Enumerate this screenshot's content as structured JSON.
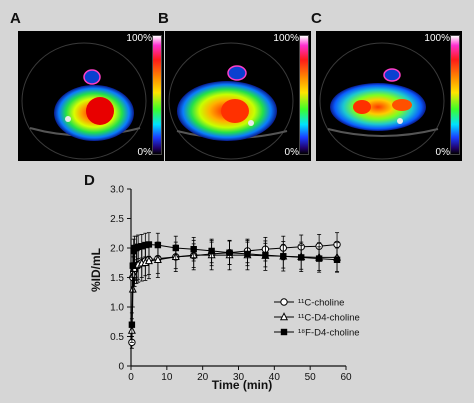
{
  "panels": [
    {
      "letter": "A",
      "cbar_top": "100%",
      "cbar_bottom": "0%"
    },
    {
      "letter": "B",
      "cbar_top": "100%",
      "cbar_bottom": "0%"
    },
    {
      "letter": "C",
      "cbar_top": "100%",
      "cbar_bottom": "0%"
    }
  ],
  "chart_panel_letter": "D",
  "colors": {
    "background": "#d6d6d6",
    "series": "#000000"
  },
  "chart_data": {
    "type": "line",
    "title": "",
    "xlabel": "Time (min)",
    "ylabel": "%ID/mL",
    "xlim": [
      0,
      60
    ],
    "ylim": [
      0,
      3.0
    ],
    "xticks": [
      0,
      10,
      20,
      30,
      40,
      50,
      60
    ],
    "yticks": [
      0,
      0.5,
      1.0,
      1.5,
      2.0,
      2.5,
      3.0
    ],
    "ytick_labels": [
      "0",
      "0.5",
      "1.0",
      "1.5",
      "2.0",
      "2.5",
      "3.0"
    ],
    "legend_position": "bottom-right",
    "series": [
      {
        "name": "¹¹C-choline",
        "marker": "open-circle",
        "x": [
          0.25,
          0.5,
          0.75,
          1,
          1.5,
          2,
          3,
          4,
          5,
          7.5,
          12.5,
          17.5,
          22.5,
          27.5,
          32.5,
          37.5,
          42.5,
          47.5,
          52.5,
          57.5
        ],
        "y": [
          0.4,
          1.5,
          1.6,
          1.65,
          1.7,
          1.72,
          1.75,
          1.78,
          1.8,
          1.82,
          1.85,
          1.87,
          1.9,
          1.92,
          1.95,
          1.98,
          2.0,
          2.02,
          2.03,
          2.06
        ],
        "err": [
          0.1,
          0.25,
          0.25,
          0.25,
          0.25,
          0.25,
          0.25,
          0.25,
          0.25,
          0.25,
          0.2,
          0.2,
          0.2,
          0.2,
          0.2,
          0.2,
          0.2,
          0.2,
          0.2,
          0.2
        ]
      },
      {
        "name": "¹¹C-D4-choline",
        "marker": "open-triangle",
        "x": [
          0.25,
          0.5,
          0.75,
          1,
          1.5,
          2,
          3,
          4,
          5,
          7.5,
          12.5,
          17.5,
          22.5,
          27.5,
          32.5,
          37.5,
          42.5,
          47.5,
          52.5,
          57.5
        ],
        "y": [
          0.6,
          1.3,
          1.55,
          1.65,
          1.7,
          1.72,
          1.74,
          1.75,
          1.78,
          1.8,
          1.85,
          1.88,
          1.88,
          1.88,
          1.88,
          1.87,
          1.86,
          1.85,
          1.84,
          1.84
        ],
        "err": [
          0.2,
          0.3,
          0.3,
          0.3,
          0.3,
          0.3,
          0.3,
          0.3,
          0.3,
          0.3,
          0.25,
          0.25,
          0.25,
          0.25,
          0.25,
          0.25,
          0.25,
          0.25,
          0.25,
          0.25
        ]
      },
      {
        "name": "¹⁸F-D4-choline",
        "marker": "filled-square",
        "x": [
          0.25,
          0.5,
          0.75,
          1,
          1.5,
          2,
          3,
          4,
          5,
          7.5,
          12.5,
          17.5,
          22.5,
          27.5,
          32.5,
          37.5,
          42.5,
          47.5,
          52.5,
          57.5
        ],
        "y": [
          0.7,
          1.7,
          1.95,
          2.0,
          2.0,
          2.02,
          2.03,
          2.05,
          2.06,
          2.05,
          2.0,
          1.98,
          1.95,
          1.92,
          1.9,
          1.88,
          1.86,
          1.84,
          1.82,
          1.8
        ],
        "err": [
          0.2,
          0.25,
          0.2,
          0.2,
          0.2,
          0.2,
          0.2,
          0.2,
          0.2,
          0.2,
          0.2,
          0.2,
          0.2,
          0.2,
          0.2,
          0.2,
          0.2,
          0.2,
          0.2,
          0.2
        ]
      }
    ]
  }
}
